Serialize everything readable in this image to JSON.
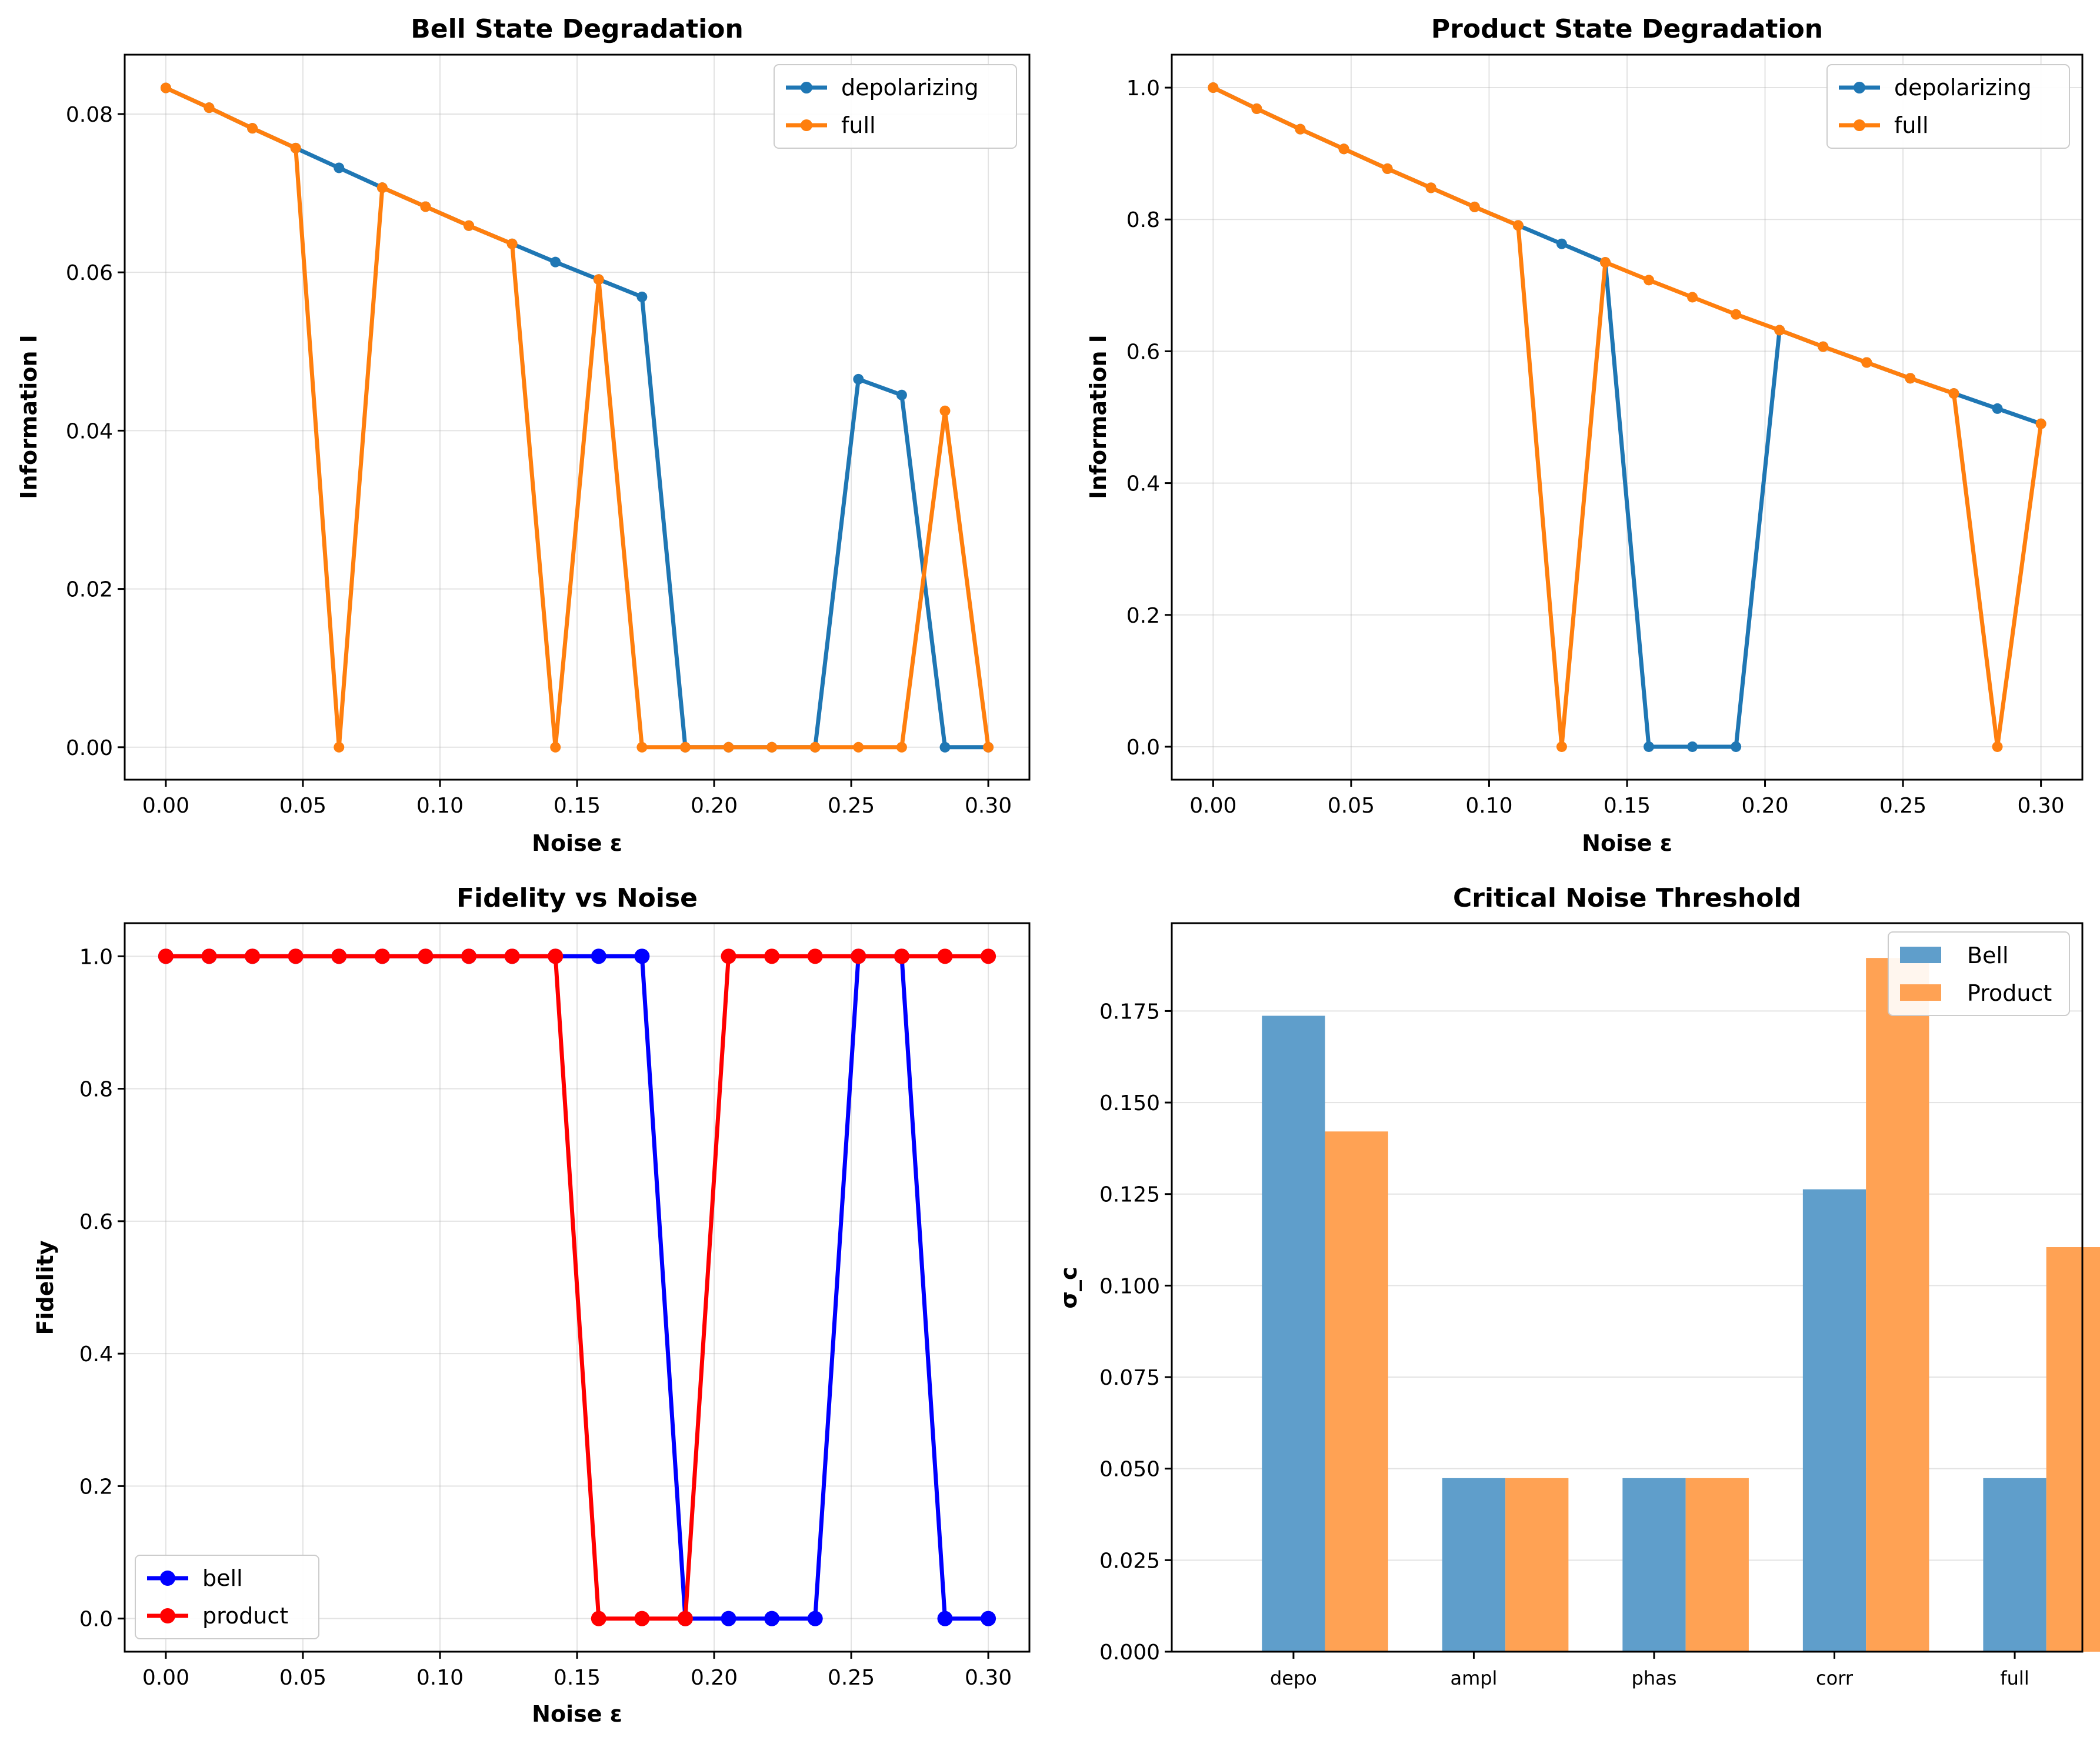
{
  "figure": {
    "background": "#ffffff"
  },
  "chart_data": [
    {
      "type": "line",
      "title": "Bell State Degradation",
      "xlabel": "Noise ε",
      "ylabel": "Information I",
      "xlim": [
        -0.015,
        0.315
      ],
      "ylim": [
        -0.0041,
        0.0875
      ],
      "xticks": [
        0,
        0.05,
        0.1,
        0.15,
        0.2,
        0.25,
        0.3
      ],
      "xtick_labels": [
        "0.00",
        "0.05",
        "0.10",
        "0.15",
        "0.20",
        "0.25",
        "0.30"
      ],
      "yticks": [
        0,
        0.02,
        0.04,
        0.06,
        0.08
      ],
      "ytick_labels": [
        "0.00",
        "0.02",
        "0.04",
        "0.06",
        "0.08"
      ],
      "grid": true,
      "legend": "top-right",
      "x": [
        0,
        0.01579,
        0.03158,
        0.04737,
        0.06316,
        0.07895,
        0.09474,
        0.11053,
        0.12632,
        0.14211,
        0.15789,
        0.17368,
        0.18947,
        0.20526,
        0.22105,
        0.23684,
        0.25263,
        0.26842,
        0.28421,
        0.3
      ],
      "series": [
        {
          "name": "depolarizing",
          "color": "#1f77b4",
          "marker": "circle-small",
          "values": [
            0.0833,
            0.0808,
            0.0782,
            0.0757,
            0.0732,
            0.0707,
            0.0683,
            0.0659,
            0.0636,
            0.0613,
            0.0591,
            0.0569,
            0.0,
            0.0,
            0.0,
            0.0,
            0.0465,
            0.0445,
            0.0,
            0.0
          ]
        },
        {
          "name": "full",
          "color": "#ff7f0e",
          "marker": "circle-small",
          "values": [
            0.0833,
            0.0808,
            0.0782,
            0.0757,
            0.0,
            0.0707,
            0.0683,
            0.0659,
            0.0636,
            0.0,
            0.0591,
            0.0,
            0.0,
            0.0,
            0.0,
            0.0,
            0.0,
            0.0,
            0.0425,
            0.0
          ]
        }
      ]
    },
    {
      "type": "line",
      "title": "Product State Degradation",
      "xlabel": "Noise ε",
      "ylabel": "Information I",
      "xlim": [
        -0.015,
        0.315
      ],
      "ylim": [
        -0.05,
        1.05
      ],
      "xticks": [
        0,
        0.05,
        0.1,
        0.15,
        0.2,
        0.25,
        0.3
      ],
      "xtick_labels": [
        "0.00",
        "0.05",
        "0.10",
        "0.15",
        "0.20",
        "0.25",
        "0.30"
      ],
      "yticks": [
        0,
        0.2,
        0.4,
        0.6,
        0.8,
        1.0
      ],
      "ytick_labels": [
        "0.0",
        "0.2",
        "0.4",
        "0.6",
        "0.8",
        "1.0"
      ],
      "grid": true,
      "legend": "top-right",
      "x": [
        0,
        0.01579,
        0.03158,
        0.04737,
        0.06316,
        0.07895,
        0.09474,
        0.11053,
        0.12632,
        0.14211,
        0.15789,
        0.17368,
        0.18947,
        0.20526,
        0.22105,
        0.23684,
        0.25263,
        0.26842,
        0.28421,
        0.3
      ],
      "series": [
        {
          "name": "depolarizing",
          "color": "#1f77b4",
          "marker": "circle-small",
          "values": [
            1.0,
            0.968,
            0.937,
            0.907,
            0.877,
            0.848,
            0.819,
            0.791,
            0.763,
            0.735,
            0.0,
            0.0,
            0.0,
            0.632,
            0.607,
            0.583,
            0.559,
            0.536,
            0.513,
            0.49
          ]
        },
        {
          "name": "full",
          "color": "#ff7f0e",
          "marker": "circle-small",
          "values": [
            1.0,
            0.968,
            0.937,
            0.907,
            0.877,
            0.848,
            0.819,
            0.791,
            0.0,
            0.735,
            0.708,
            0.682,
            0.656,
            0.632,
            0.607,
            0.583,
            0.559,
            0.536,
            0.0,
            0.49
          ]
        }
      ]
    },
    {
      "type": "line",
      "title": "Fidelity vs Noise",
      "xlabel": "Noise ε",
      "ylabel": "Fidelity",
      "xlim": [
        -0.015,
        0.315
      ],
      "ylim": [
        -0.05,
        1.05
      ],
      "xticks": [
        0,
        0.05,
        0.1,
        0.15,
        0.2,
        0.25,
        0.3
      ],
      "xtick_labels": [
        "0.00",
        "0.05",
        "0.10",
        "0.15",
        "0.20",
        "0.25",
        "0.30"
      ],
      "yticks": [
        0,
        0.2,
        0.4,
        0.6,
        0.8,
        1.0
      ],
      "ytick_labels": [
        "0.0",
        "0.2",
        "0.4",
        "0.6",
        "0.8",
        "1.0"
      ],
      "grid": true,
      "legend": "bottom-left",
      "x": [
        0,
        0.01579,
        0.03158,
        0.04737,
        0.06316,
        0.07895,
        0.09474,
        0.11053,
        0.12632,
        0.14211,
        0.15789,
        0.17368,
        0.18947,
        0.20526,
        0.22105,
        0.23684,
        0.25263,
        0.26842,
        0.28421,
        0.3
      ],
      "series": [
        {
          "name": "bell",
          "color": "#0000ff",
          "marker": "circle-large",
          "values": [
            1,
            1,
            1,
            1,
            1,
            1,
            1,
            1,
            1,
            1,
            1,
            1,
            0,
            0,
            0,
            0,
            1,
            1,
            0,
            0
          ]
        },
        {
          "name": "product",
          "color": "#ff0000",
          "marker": "circle-large",
          "values": [
            1,
            1,
            1,
            1,
            1,
            1,
            1,
            1,
            1,
            1,
            0,
            0,
            0,
            1,
            1,
            1,
            1,
            1,
            1,
            1
          ]
        }
      ]
    },
    {
      "type": "bar",
      "title": "Critical Noise Threshold",
      "xlabel": "",
      "ylabel": "σ_c",
      "ylim": [
        0,
        0.199
      ],
      "categories": [
        "depo",
        "ampl",
        "phas",
        "corr",
        "full"
      ],
      "yticks": [
        0,
        0.025,
        0.05,
        0.075,
        0.1,
        0.125,
        0.15,
        0.175
      ],
      "ytick_labels": [
        "0.000",
        "0.025",
        "0.050",
        "0.075",
        "0.100",
        "0.125",
        "0.150",
        "0.175"
      ],
      "grid": true,
      "legend": "top-right",
      "series": [
        {
          "name": "Bell",
          "color": "#5f9ecb",
          "values": [
            0.1737,
            0.0474,
            0.0474,
            0.1263,
            0.0474
          ]
        },
        {
          "name": "Product",
          "color": "#ffa254",
          "values": [
            0.1421,
            0.0474,
            0.0474,
            0.1895,
            0.1105
          ]
        }
      ]
    }
  ]
}
